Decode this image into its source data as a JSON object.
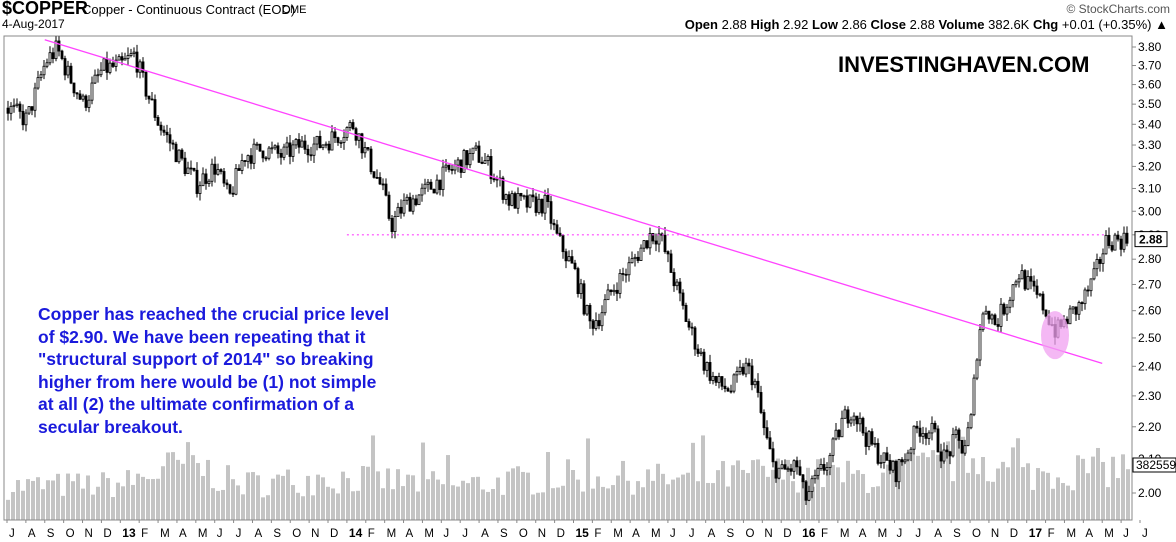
{
  "header": {
    "symbol": "$COPPER",
    "description": "Copper - Continuous Contract (EOD)",
    "exchange": "CME",
    "date": "4-Aug-2017",
    "credit": "© StockCharts.com",
    "open_label": "Open",
    "open": "2.88",
    "high_label": "High",
    "high": "2.92",
    "low_label": "Low",
    "low": "2.86",
    "close_label": "Close",
    "close": "2.88",
    "volume_label": "Volume",
    "volume": "382.6K",
    "chg_label": "Chg",
    "chg": "+0.01 (+0.35%)",
    "chg_arrow": "▲"
  },
  "watermark": "INVESTINGHAVEN.COM",
  "annotation": "Copper has reached the crucial price level\nof $2.90. We have been repeating that it\n\"structural support of 2014\" so breaking\nhigher from here would be (1) not simple\nat all (2) the ultimate confirmation of a\nsecular breakout.",
  "colors": {
    "candles": "#000000",
    "volume": "#c4c4c4",
    "trendline": "#ff44ff",
    "annotation_text": "#1a1adc",
    "highlight": "#f0a0f0"
  },
  "chart_data": {
    "type": "candlestick",
    "yscale": "log",
    "ylim": [
      1.93,
      3.86
    ],
    "yticks": [
      "3.80",
      "3.70",
      "3.60",
      "3.50",
      "3.40",
      "3.30",
      "3.20",
      "3.10",
      "3.00",
      "2.90",
      "2.80",
      "2.70",
      "2.60",
      "2.50",
      "2.40",
      "2.30",
      "2.20",
      "2.10",
      "2.00"
    ],
    "last_price_label": "2.88",
    "last_volume_label": "382559",
    "x_labels": [
      {
        "t": "J",
        "year": false
      },
      {
        "t": "A",
        "year": false
      },
      {
        "t": "S",
        "year": false
      },
      {
        "t": "O",
        "year": false
      },
      {
        "t": "N",
        "year": false
      },
      {
        "t": "D",
        "year": false
      },
      {
        "t": "13",
        "year": true
      },
      {
        "t": "F",
        "year": false
      },
      {
        "t": "M",
        "year": false
      },
      {
        "t": "A",
        "year": false
      },
      {
        "t": "M",
        "year": false
      },
      {
        "t": "J",
        "year": false
      },
      {
        "t": "J",
        "year": false
      },
      {
        "t": "A",
        "year": false
      },
      {
        "t": "S",
        "year": false
      },
      {
        "t": "O",
        "year": false
      },
      {
        "t": "N",
        "year": false
      },
      {
        "t": "D",
        "year": false
      },
      {
        "t": "14",
        "year": true
      },
      {
        "t": "F",
        "year": false
      },
      {
        "t": "M",
        "year": false
      },
      {
        "t": "A",
        "year": false
      },
      {
        "t": "M",
        "year": false
      },
      {
        "t": "J",
        "year": false
      },
      {
        "t": "J",
        "year": false
      },
      {
        "t": "A",
        "year": false
      },
      {
        "t": "S",
        "year": false
      },
      {
        "t": "O",
        "year": false
      },
      {
        "t": "N",
        "year": false
      },
      {
        "t": "D",
        "year": false
      },
      {
        "t": "15",
        "year": true
      },
      {
        "t": "F",
        "year": false
      },
      {
        "t": "M",
        "year": false
      },
      {
        "t": "A",
        "year": false
      },
      {
        "t": "M",
        "year": false
      },
      {
        "t": "J",
        "year": false
      },
      {
        "t": "J",
        "year": false
      },
      {
        "t": "A",
        "year": false
      },
      {
        "t": "S",
        "year": false
      },
      {
        "t": "O",
        "year": false
      },
      {
        "t": "N",
        "year": false
      },
      {
        "t": "D",
        "year": false
      },
      {
        "t": "16",
        "year": true
      },
      {
        "t": "F",
        "year": false
      },
      {
        "t": "M",
        "year": false
      },
      {
        "t": "A",
        "year": false
      },
      {
        "t": "M",
        "year": false
      },
      {
        "t": "J",
        "year": false
      },
      {
        "t": "J",
        "year": false
      },
      {
        "t": "A",
        "year": false
      },
      {
        "t": "S",
        "year": false
      },
      {
        "t": "O",
        "year": false
      },
      {
        "t": "N",
        "year": false
      },
      {
        "t": "D",
        "year": false
      },
      {
        "t": "17",
        "year": true
      },
      {
        "t": "F",
        "year": false
      },
      {
        "t": "M",
        "year": false
      },
      {
        "t": "A",
        "year": false
      },
      {
        "t": "M",
        "year": false
      },
      {
        "t": "J",
        "year": false
      },
      {
        "t": "J",
        "year": false
      }
    ],
    "price_path": [
      {
        "m": 0.0,
        "p": 3.48
      },
      {
        "m": 1.0,
        "p": 3.42
      },
      {
        "m": 2.0,
        "p": 3.72
      },
      {
        "m": 2.6,
        "p": 3.79
      },
      {
        "m": 3.2,
        "p": 3.65
      },
      {
        "m": 4.0,
        "p": 3.5
      },
      {
        "m": 5.0,
        "p": 3.68
      },
      {
        "m": 6.0,
        "p": 3.7
      },
      {
        "m": 6.7,
        "p": 3.76
      },
      {
        "m": 7.2,
        "p": 3.6
      },
      {
        "m": 8.0,
        "p": 3.4
      },
      {
        "m": 9.0,
        "p": 3.25
      },
      {
        "m": 10.0,
        "p": 3.12
      },
      {
        "m": 11.0,
        "p": 3.2
      },
      {
        "m": 11.7,
        "p": 3.05
      },
      {
        "m": 12.5,
        "p": 3.25
      },
      {
        "m": 13.5,
        "p": 3.28
      },
      {
        "m": 14.5,
        "p": 3.25
      },
      {
        "m": 15.5,
        "p": 3.3
      },
      {
        "m": 16.5,
        "p": 3.3
      },
      {
        "m": 17.5,
        "p": 3.35
      },
      {
        "m": 18.3,
        "p": 3.4
      },
      {
        "m": 19.0,
        "p": 3.25
      },
      {
        "m": 19.8,
        "p": 3.1
      },
      {
        "m": 20.3,
        "p": 2.94
      },
      {
        "m": 21.0,
        "p": 3.03
      },
      {
        "m": 22.0,
        "p": 3.08
      },
      {
        "m": 23.0,
        "p": 3.15
      },
      {
        "m": 24.0,
        "p": 3.22
      },
      {
        "m": 24.8,
        "p": 3.26
      },
      {
        "m": 25.5,
        "p": 3.2
      },
      {
        "m": 26.5,
        "p": 3.05
      },
      {
        "m": 27.5,
        "p": 3.03
      },
      {
        "m": 28.5,
        "p": 3.03
      },
      {
        "m": 29.0,
        "p": 2.9
      },
      {
        "m": 30.0,
        "p": 2.75
      },
      {
        "m": 30.8,
        "p": 2.55
      },
      {
        "m": 31.3,
        "p": 2.58
      },
      {
        "m": 32.0,
        "p": 2.68
      },
      {
        "m": 33.0,
        "p": 2.78
      },
      {
        "m": 34.0,
        "p": 2.9
      },
      {
        "m": 34.5,
        "p": 2.9
      },
      {
        "m": 35.0,
        "p": 2.78
      },
      {
        "m": 35.6,
        "p": 2.64
      },
      {
        "m": 36.0,
        "p": 2.55
      },
      {
        "m": 36.8,
        "p": 2.42
      },
      {
        "m": 37.5,
        "p": 2.34
      },
      {
        "m": 38.3,
        "p": 2.32
      },
      {
        "m": 39.0,
        "p": 2.4
      },
      {
        "m": 39.5,
        "p": 2.36
      },
      {
        "m": 40.0,
        "p": 2.2
      },
      {
        "m": 40.5,
        "p": 2.08
      },
      {
        "m": 41.0,
        "p": 2.06
      },
      {
        "m": 41.8,
        "p": 2.08
      },
      {
        "m": 42.2,
        "p": 1.98
      },
      {
        "m": 42.8,
        "p": 2.04
      },
      {
        "m": 43.5,
        "p": 2.1
      },
      {
        "m": 44.2,
        "p": 2.22
      },
      {
        "m": 44.7,
        "p": 2.26
      },
      {
        "m": 45.5,
        "p": 2.16
      },
      {
        "m": 46.3,
        "p": 2.1
      },
      {
        "m": 47.0,
        "p": 2.06
      },
      {
        "m": 47.6,
        "p": 2.12
      },
      {
        "m": 48.2,
        "p": 2.2
      },
      {
        "m": 49.0,
        "p": 2.18
      },
      {
        "m": 49.6,
        "p": 2.1
      },
      {
        "m": 50.2,
        "p": 2.16
      },
      {
        "m": 50.6,
        "p": 2.13
      },
      {
        "m": 51.0,
        "p": 2.22
      },
      {
        "m": 51.4,
        "p": 2.52
      },
      {
        "m": 51.8,
        "p": 2.62
      },
      {
        "m": 52.3,
        "p": 2.55
      },
      {
        "m": 53.0,
        "p": 2.65
      },
      {
        "m": 53.5,
        "p": 2.75
      },
      {
        "m": 54.0,
        "p": 2.7
      },
      {
        "m": 54.8,
        "p": 2.62
      },
      {
        "m": 55.5,
        "p": 2.52
      },
      {
        "m": 56.2,
        "p": 2.58
      },
      {
        "m": 56.8,
        "p": 2.62
      },
      {
        "m": 57.5,
        "p": 2.72
      },
      {
        "m": 58.0,
        "p": 2.84
      },
      {
        "m": 58.2,
        "p": 2.88
      }
    ],
    "annotations": [
      {
        "type": "trendline",
        "from": {
          "m": 2.0,
          "p": 3.84
        },
        "to": {
          "m": 58.0,
          "p": 2.41
        }
      },
      {
        "type": "hline",
        "style": "dotted",
        "from_m": 18.0,
        "to_m": 58.2,
        "p": 2.9
      },
      {
        "type": "highlight-ellipse",
        "m": 55.5,
        "p": 2.51
      }
    ],
    "volume": {
      "y_axis_label": "",
      "relative_profile": [
        {
          "m": 0,
          "v": 0.32
        },
        {
          "m": 6,
          "v": 0.34
        },
        {
          "m": 9.5,
          "v": 0.55
        },
        {
          "m": 12,
          "v": 0.34
        },
        {
          "m": 18,
          "v": 0.4
        },
        {
          "m": 24,
          "v": 0.33
        },
        {
          "m": 30,
          "v": 0.42
        },
        {
          "m": 36,
          "v": 0.38
        },
        {
          "m": 40,
          "v": 0.45
        },
        {
          "m": 46,
          "v": 0.4
        },
        {
          "m": 51.5,
          "v": 0.62
        },
        {
          "m": 53,
          "v": 0.42
        },
        {
          "m": 58.2,
          "v": 0.5
        }
      ]
    }
  }
}
